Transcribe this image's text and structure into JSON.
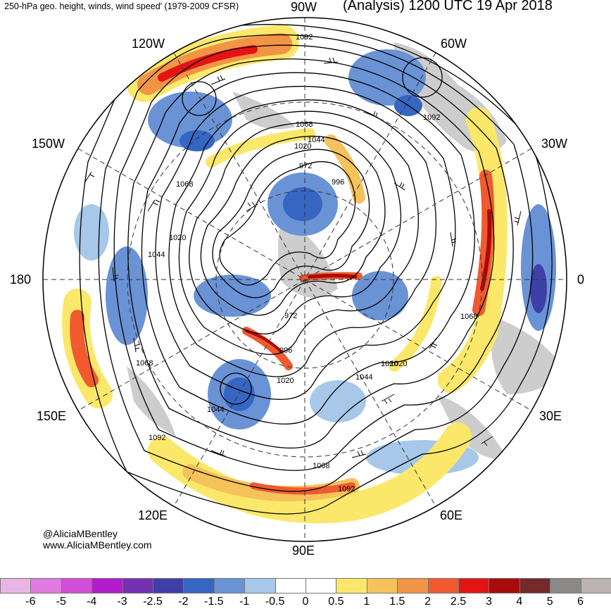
{
  "header": {
    "title_left": "250-hPa geo. height, winds, wind speed' (1979-2009 CFSR)",
    "title_right": "(Analysis) 1200 UTC 19 Apr 2018"
  },
  "longitude_labels": {
    "n90w": "90W",
    "n120w": "120W",
    "n60w": "60W",
    "n150w": "150W",
    "n30w": "30W",
    "n180": "180",
    "n0": "0",
    "n150e": "150E",
    "n30e": "30E",
    "n120e": "120E",
    "n60e": "60E",
    "n90e": "90E"
  },
  "contour_labels": [
    "1092",
    "1068",
    "1044",
    "1020",
    "972",
    "996",
    "1020",
    "1068",
    "1044",
    "1020",
    "1092",
    "972",
    "996",
    "1020",
    "1044",
    "1068",
    "1092",
    "1068",
    "1044",
    "1020",
    "1068",
    "1092"
  ],
  "credit": {
    "handle": "@AliciaMBentley",
    "site": "www.AliciaMBentley.com"
  },
  "colorbar": {
    "ticks": [
      "-6",
      "-5",
      "-4",
      "-3",
      "-2.5",
      "-2",
      "-1.5",
      "-1",
      "-0.5",
      "0",
      "0.5",
      "1",
      "1.5",
      "2",
      "2.5",
      "3",
      "4",
      "5",
      "6"
    ],
    "colors": [
      "#e8b6e6",
      "#e07ae0",
      "#d24ed6",
      "#b21ccc",
      "#7231b3",
      "#3f3fa8",
      "#3566c2",
      "#6a93d6",
      "#a7c8e8",
      "#ffffff",
      "#ffffff",
      "#fbe86a",
      "#f5c25c",
      "#f29446",
      "#f05a2e",
      "#e41414",
      "#a80b0b",
      "#74292a",
      "#8c8888",
      "#bdb3b3"
    ]
  },
  "colors": {
    "land": "#c8c8c8",
    "jet_yellow": "#fbe86a",
    "jet_orange": "#f5c25c",
    "jet_red": "#f05a2e",
    "anom_blue": "#6a93d6",
    "anom_darkblue": "#3566c2",
    "contour": "#000000"
  }
}
